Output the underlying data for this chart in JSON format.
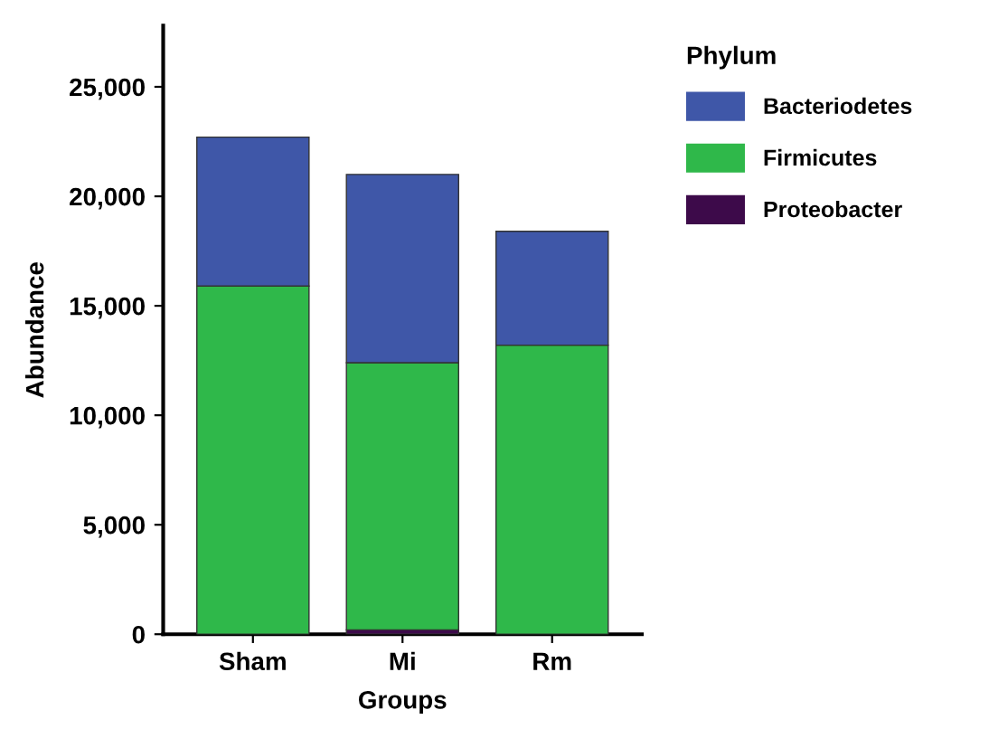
{
  "chart_data": {
    "type": "bar",
    "stacked": true,
    "xlabel": "Groups",
    "ylabel": "Abundance",
    "legend_title": "Phylum",
    "legend": "right",
    "grid": false,
    "categories": [
      "Sham",
      "Mi",
      "Rm"
    ],
    "series": [
      {
        "name": "Proteobacter",
        "color": "#3d0a4a",
        "values": [
          0,
          200,
          0
        ]
      },
      {
        "name": "Firmicutes",
        "color": "#2fb84a",
        "values": [
          15900,
          12200,
          13200
        ]
      },
      {
        "name": "Bacteriodetes",
        "color": "#3f57a8",
        "values": [
          6800,
          8600,
          5200
        ]
      }
    ],
    "ylim": [
      0,
      27800
    ],
    "yticks": [
      {
        "value": 0,
        "label": "0"
      },
      {
        "value": 5000,
        "label": "5,000"
      },
      {
        "value": 10000,
        "label": "10,000"
      },
      {
        "value": 15000,
        "label": "15,000"
      },
      {
        "value": 20000,
        "label": "20,000"
      },
      {
        "value": 25000,
        "label": "25,000"
      }
    ]
  }
}
